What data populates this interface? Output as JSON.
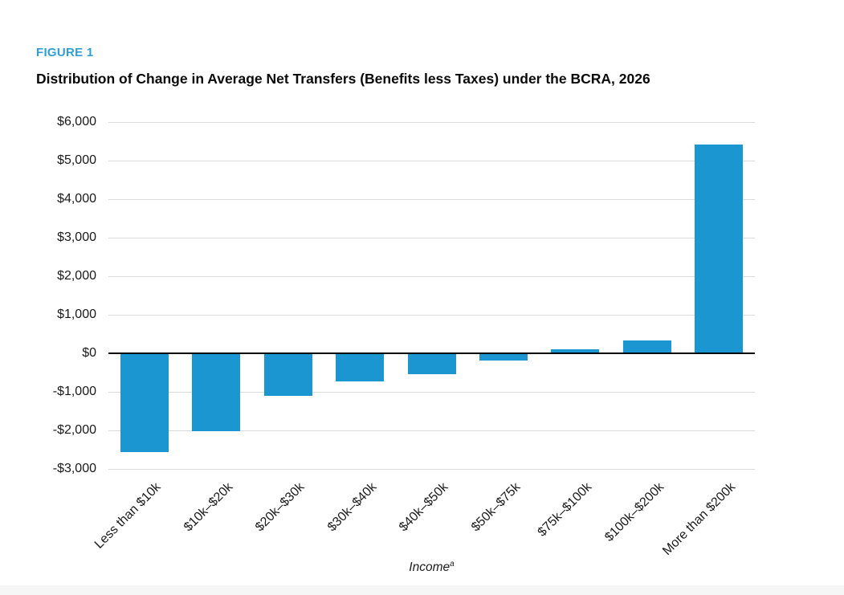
{
  "figure_label": "FIGURE 1",
  "title": "Distribution of Change in Average Net Transfers (Benefits less Taxes) under the BCRA, 2026",
  "colors": {
    "figure_label_blue": "#2d9fd8",
    "bar_blue": "#1b96d1",
    "gridline_gray": "#d9d9d9",
    "zero_axis_black": "#000000",
    "footer_strip_gray": "#f6f6f6"
  },
  "chart_data": {
    "type": "bar",
    "title": "Distribution of Change in Average Net Transfers (Benefits less Taxes) under the BCRA, 2026",
    "categories": [
      "Less than $10k",
      "$10k–$20k",
      "$20k–$30k",
      "$30k–$40k",
      "$40k–$50k",
      "$50k–$75k",
      "$75k–$100k",
      "$100k–$200k",
      "More than $200k"
    ],
    "values": [
      -2550,
      -2000,
      -1080,
      -710,
      -520,
      -170,
      100,
      330,
      5420
    ],
    "xlabel": "Income",
    "xlabel_note": "a",
    "ylabel": "",
    "ylim": [
      -3000,
      6000
    ],
    "y_tick_values": [
      6000,
      5000,
      4000,
      3000,
      2000,
      1000,
      0,
      -1000,
      -2000,
      -3000
    ],
    "y_tick_labels": [
      "$6,000",
      "$5,000",
      "$4,000",
      "$3,000",
      "$2,000",
      "$1,000",
      "$0",
      "-$1,000",
      "-$2,000",
      "-$3,000"
    ],
    "grid": "horizontal",
    "legend": "none",
    "bar_color": "#1b96d1"
  }
}
